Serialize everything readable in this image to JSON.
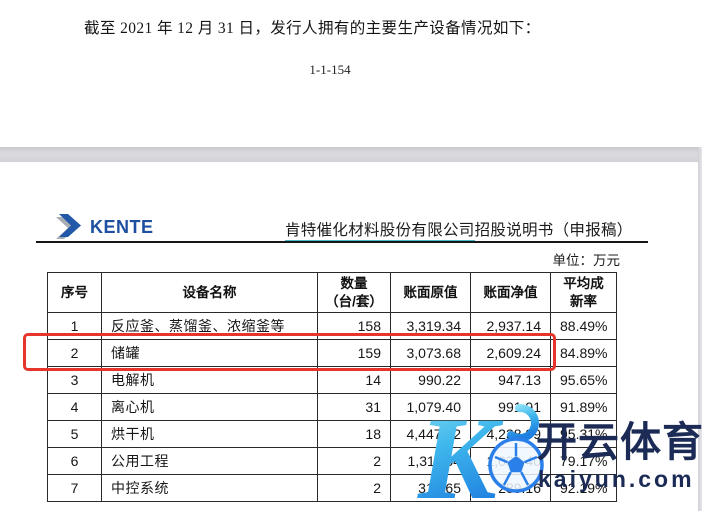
{
  "page_top": {
    "intro_text": "截至 2021 年 12 月 31 日，发行人拥有的主要生产设备情况如下：",
    "page_number": "1-1-154"
  },
  "header": {
    "logo_text": "KENTE",
    "company_name": "肯特催化材料股份有限公司",
    "doc_title_suffix": "招股说明书（申报稿）",
    "unit_label": "单位：万元"
  },
  "table": {
    "columns": [
      "序号",
      "设备名称",
      "数量\n（台/套）",
      "账面原值",
      "账面净值",
      "平均成\n新率"
    ],
    "rows": [
      {
        "no": "1",
        "name": "反应釜、蒸馏釜、浓缩釜等",
        "qty": "158",
        "original": "3,319.34",
        "net": "2,937.14",
        "rate": "88.49%",
        "highlighted": false
      },
      {
        "no": "2",
        "name": "储罐",
        "qty": "159",
        "original": "3,073.68",
        "net": "2,609.24",
        "rate": "84.89%",
        "highlighted": true
      },
      {
        "no": "3",
        "name": "电解机",
        "qty": "14",
        "original": "990.22",
        "net": "947.13",
        "rate": "95.65%",
        "highlighted": false
      },
      {
        "no": "4",
        "name": "离心机",
        "qty": "31",
        "original": "1,079.40",
        "net": "991.91",
        "rate": "91.89%",
        "highlighted": false
      },
      {
        "no": "5",
        "name": "烘干机",
        "qty": "18",
        "original": "4,447.52",
        "net": "4,238.99",
        "rate": "95.31%",
        "highlighted": false
      },
      {
        "no": "6",
        "name": "公用工程",
        "qty": "2",
        "original": "1,311.54",
        "net": "1,038.40",
        "rate": "79.17%",
        "highlighted": false
      },
      {
        "no": "7",
        "name": "中控系统",
        "qty": "2",
        "original": "313.65",
        "net": "289.16",
        "rate": "92.19%",
        "highlighted": false
      }
    ]
  },
  "watermark": {
    "brand_cn": "开云体育",
    "brand_url": "kaiyun.com"
  },
  "colors": {
    "highlight_red": "#e7342c",
    "link_teal": "#45b8c9",
    "kente_blue": "#1e4fa0",
    "watermark_navy": "#1b2b55",
    "k_gradient_top": "#8ae0f5",
    "k_gradient_bottom": "#1e7fe0",
    "ball_blue": "#2a7fe8",
    "page_band_gray": "#d2d2d8"
  }
}
